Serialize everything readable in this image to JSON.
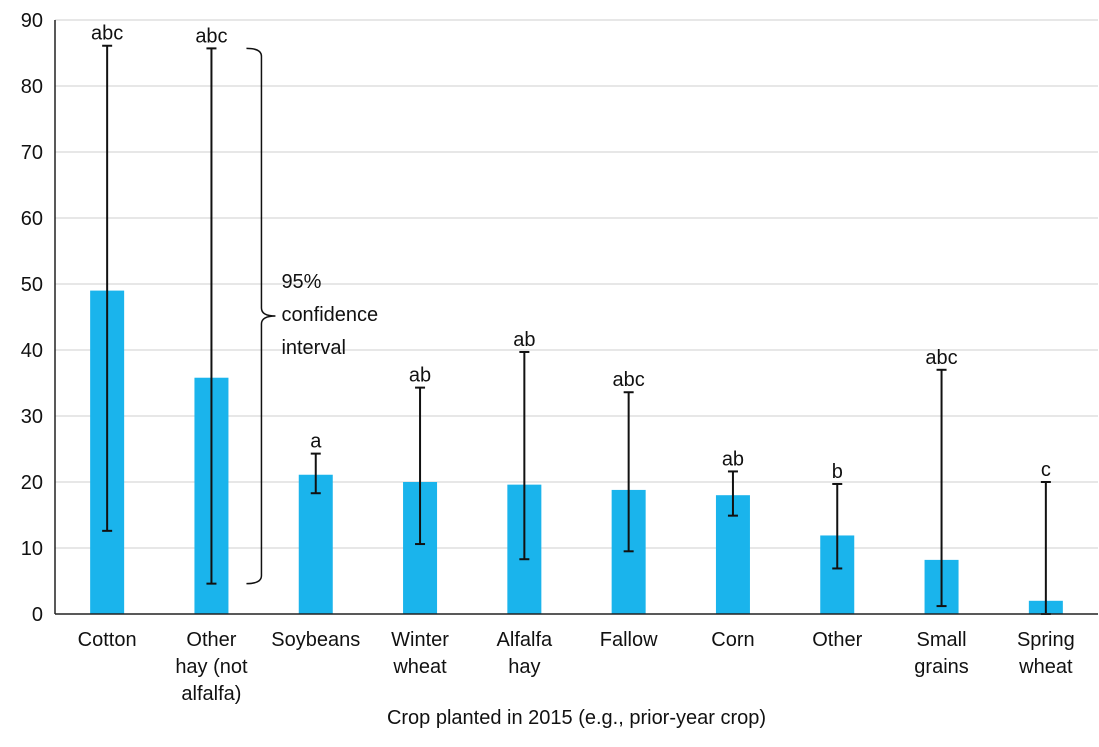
{
  "chart_data": {
    "type": "bar",
    "xlabel": "Crop planted in 2015 (e.g., prior-year crop)",
    "ylabel": "",
    "ylim": [
      0,
      90
    ],
    "yticks": [
      0,
      10,
      20,
      30,
      40,
      50,
      60,
      70,
      80,
      90
    ],
    "grid": "horizontal",
    "colors": {
      "bar": "#1ab4ec",
      "grid": "#cfcfcf",
      "axis": "#222222",
      "error": "#111111"
    },
    "categories": [
      [
        "Cotton"
      ],
      [
        "Other",
        "hay (not",
        "alfalfa)"
      ],
      [
        "Soybeans"
      ],
      [
        "Winter",
        "wheat"
      ],
      [
        "Alfalfa",
        "hay"
      ],
      [
        "Fallow"
      ],
      [
        "Corn"
      ],
      [
        "Other"
      ],
      [
        "Small",
        "grains"
      ],
      [
        "Spring",
        "wheat"
      ]
    ],
    "values": [
      49,
      35.8,
      21.1,
      20,
      19.6,
      18.8,
      18,
      11.9,
      8.2,
      2
    ],
    "ci_low": [
      12.6,
      4.6,
      18.3,
      10.6,
      8.3,
      9.5,
      14.9,
      6.9,
      1.2,
      0
    ],
    "ci_high": [
      86.1,
      85.7,
      24.3,
      34.3,
      39.7,
      33.6,
      21.6,
      19.7,
      37,
      20
    ],
    "significance": [
      "abc",
      "abc",
      "a",
      "ab",
      "ab",
      "abc",
      "ab",
      "b",
      "abc",
      "c"
    ],
    "annotation": {
      "lines": [
        "95%",
        "confidence",
        "interval"
      ],
      "bar_index": 1
    }
  }
}
